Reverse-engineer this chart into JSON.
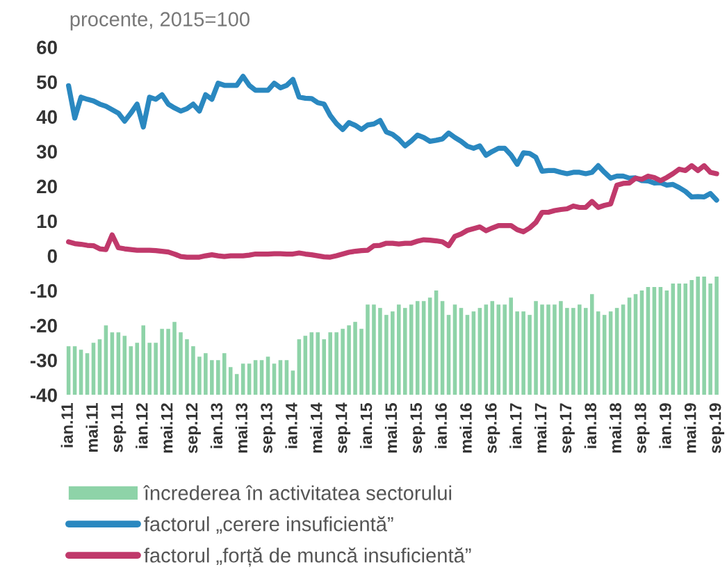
{
  "chart_data": {
    "type": "bar",
    "ylabel": "procente, 2015=100",
    "legend": "bottom",
    "categories": [
      "ian.11",
      null,
      null,
      null,
      "mai.11",
      null,
      null,
      null,
      "sep.11",
      null,
      null,
      null,
      "ian.12",
      null,
      null,
      null,
      "mai.12",
      null,
      null,
      null,
      "sep.12",
      null,
      null,
      null,
      "ian.13",
      null,
      null,
      null,
      "mai.13",
      null,
      null,
      null,
      "sep.13",
      null,
      null,
      null,
      "ian.14",
      null,
      null,
      null,
      "mai.14",
      null,
      null,
      null,
      "sep.14",
      null,
      null,
      null,
      "ian.15",
      null,
      null,
      null,
      "mai.15",
      null,
      null,
      null,
      "sep.15",
      null,
      null,
      null,
      "ian.16",
      null,
      null,
      null,
      "mai.16",
      null,
      null,
      null,
      "sep.16",
      null,
      null,
      null,
      "ian.17",
      null,
      null,
      null,
      "mai.17",
      null,
      null,
      null,
      "sep.17",
      null,
      null,
      null,
      "ian.18",
      null,
      null,
      null,
      "mai.18",
      null,
      null,
      null,
      "sep.18",
      null,
      null,
      null,
      "ian.19",
      null,
      null,
      null,
      "mai.19",
      null,
      null,
      null,
      "sep.19"
    ],
    "ylim": [
      -40,
      60
    ],
    "yticks": [
      -40,
      -30,
      -20,
      -10,
      0,
      10,
      20,
      30,
      40,
      50,
      60
    ],
    "series": [
      {
        "name": "încrederea în activitatea sectorului",
        "color": "#8ed3a8",
        "base": [
          -40,
          -40,
          -40,
          -40,
          -40,
          -40,
          -40,
          -40,
          -40,
          -40,
          -40,
          -40,
          -40,
          -40,
          -40,
          -40,
          -40,
          -40,
          -40,
          -40,
          -40,
          -40,
          -40,
          -40,
          -40,
          -40,
          -40,
          -40,
          -40,
          -40,
          -40,
          -40,
          -40,
          -40,
          -40,
          -40,
          -40,
          -40,
          -40,
          -40,
          -40,
          -40,
          -40,
          -40,
          -40,
          -40,
          -40,
          -40,
          -40,
          -40,
          -40,
          -40,
          -40,
          -40,
          -40,
          -40,
          -40,
          -40,
          -40,
          -40,
          -40,
          -40,
          -40,
          -40,
          -40,
          -40,
          -40,
          -40,
          -40,
          -40,
          -40,
          -40,
          -40,
          -40,
          -40,
          -40,
          -40,
          -40,
          -40,
          -40,
          -40,
          -40,
          -40,
          -40,
          -40,
          -40,
          -40,
          -40,
          -40,
          -40,
          -40,
          -40,
          -40,
          -40,
          -40,
          -40,
          -40,
          -40,
          -40,
          -40,
          -40,
          -40,
          -40,
          -40,
          -40
        ],
        "values": [
          14,
          14,
          13,
          12,
          15,
          16,
          20,
          18,
          18,
          17,
          14,
          15,
          20,
          15,
          15,
          19,
          19,
          21,
          18,
          16,
          14,
          11,
          12,
          10,
          10,
          12,
          8,
          6,
          9,
          9,
          10,
          10,
          11,
          9,
          10,
          10,
          7,
          16,
          17,
          18,
          18,
          16,
          18,
          18,
          19,
          20,
          21,
          19,
          26,
          26,
          25,
          23,
          24,
          26,
          25,
          26,
          27,
          27,
          28,
          30,
          27,
          23,
          26,
          25,
          23,
          24,
          25,
          26,
          27,
          26,
          26,
          28,
          24,
          24,
          23,
          27,
          26,
          26,
          26,
          27,
          25,
          25,
          26,
          25,
          29,
          24,
          23,
          24,
          25,
          26,
          28,
          29,
          30,
          31,
          31,
          31,
          30,
          32,
          32,
          32,
          33,
          34,
          34,
          32,
          34
        ]
      },
      {
        "name": "factorul „cerere insuficientă”",
        "type": "line",
        "color": "#2a88c0",
        "values": [
          48.9,
          39.6,
          45.6,
          45,
          44.5,
          43.6,
          43,
          42,
          41,
          38.7,
          41,
          43.6,
          37,
          45.6,
          45,
          46.3,
          43.6,
          42.5,
          41.6,
          42.3,
          43.6,
          41.6,
          46.3,
          45,
          49.6,
          49,
          49,
          49,
          51.6,
          49,
          47.6,
          47.6,
          47.6,
          49.6,
          48.3,
          49,
          50.7,
          45.6,
          45.3,
          45.2,
          44,
          43.6,
          40.3,
          38,
          36.3,
          38.3,
          37.5,
          36.3,
          37.6,
          37.9,
          38.9,
          35.6,
          34.9,
          33.5,
          31.6,
          33,
          34.7,
          34,
          32.9,
          33.2,
          33.6,
          35.3,
          34,
          32.9,
          31.5,
          30.9,
          31.6,
          28.9,
          30,
          30.9,
          30.9,
          29,
          26.3,
          29.6,
          29.4,
          28.3,
          24.3,
          24.5,
          24.5,
          24,
          23.6,
          24,
          24,
          23.6,
          24,
          25.9,
          24,
          22.3,
          22.9,
          22.9,
          22.3,
          22.4,
          21.6,
          21.5,
          20.9,
          21,
          20.3,
          20.5,
          19.6,
          18.5,
          16.9,
          17,
          16.9,
          17.9,
          16
        ]
      },
      {
        "name": "factorul „forță de muncă insuficientă”",
        "type": "line",
        "color": "#c0396b",
        "values": [
          4,
          3.5,
          3.3,
          3,
          2.9,
          2,
          1.8,
          6,
          2.3,
          2,
          1.8,
          1.6,
          1.6,
          1.6,
          1.5,
          1.3,
          1.1,
          0.5,
          -0.2,
          -0.4,
          -0.4,
          -0.4,
          0,
          0.3,
          0,
          -0.2,
          0,
          0,
          0,
          0.2,
          0.5,
          0.5,
          0.5,
          0.6,
          0.6,
          0.5,
          0.5,
          0.8,
          0.5,
          0.3,
          0,
          -0.3,
          -0.4,
          0,
          0.5,
          1,
          1.3,
          1.5,
          1.6,
          2.9,
          3,
          3.6,
          3.6,
          3.4,
          3.6,
          3.6,
          4.2,
          4.6,
          4.5,
          4.3,
          4,
          2.9,
          5.6,
          6.3,
          7.3,
          7.8,
          8.3,
          7.2,
          8,
          8.7,
          8.7,
          8.7,
          7.5,
          6.9,
          8,
          9.6,
          12.5,
          12.5,
          13,
          13.3,
          13.5,
          14.3,
          13.9,
          13.9,
          15.6,
          13.9,
          14.5,
          14.9,
          20.3,
          20.8,
          20.9,
          22.3,
          22,
          22.9,
          22.5,
          21.6,
          22.5,
          23.6,
          24.9,
          24.5,
          25.9,
          24.5,
          25.9,
          24,
          23.6
        ]
      }
    ]
  }
}
